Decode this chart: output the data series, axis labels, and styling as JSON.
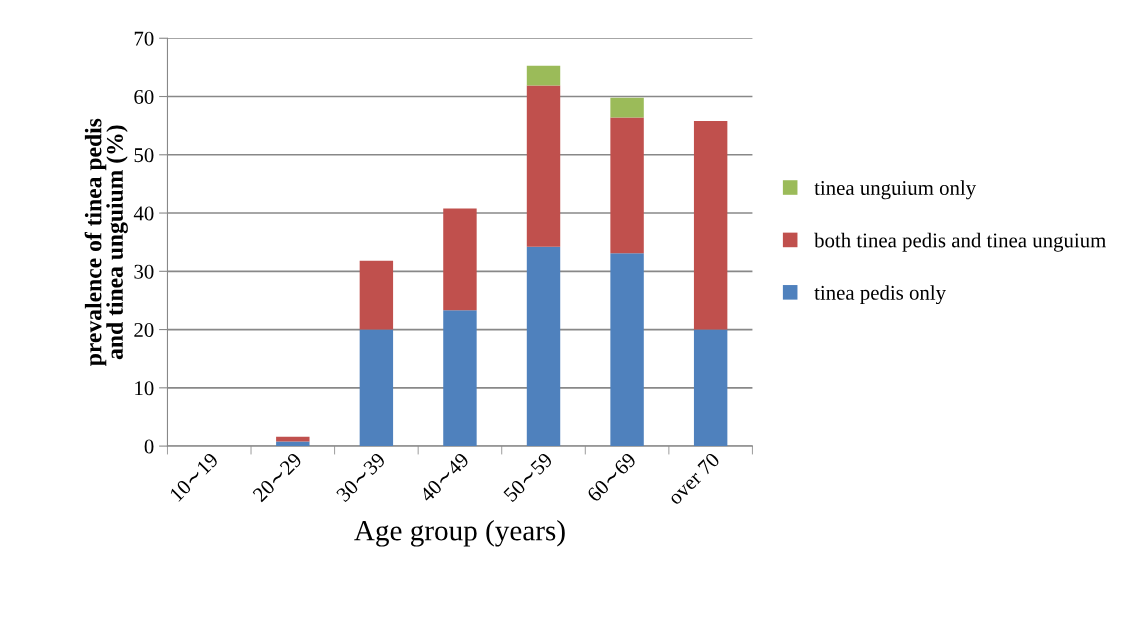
{
  "chart_data": {
    "type": "bar",
    "stacked": true,
    "xlabel": "Age group (years)",
    "ylabel": "prevalence of tinea pedis\nand tinea unguium (%)",
    "categories": [
      "10∼19",
      "20∼29",
      "30∼39",
      "40∼49",
      "50∼59",
      "60∼69",
      "over 70"
    ],
    "series": [
      {
        "name": "tinea pedis only",
        "color": "#4f81bd",
        "values": [
          0,
          0.8,
          20,
          23.3,
          34.2,
          33.1,
          20
        ]
      },
      {
        "name": "both tinea pedis and tinea unguium",
        "color": "#c0504d",
        "values": [
          0,
          0.8,
          11.8,
          17.5,
          27.7,
          23.3,
          35.8
        ]
      },
      {
        "name": "tinea unguium only",
        "color": "#9bbb59",
        "values": [
          0,
          0,
          0,
          0,
          3.4,
          3.4,
          0
        ]
      }
    ],
    "ylim": [
      0,
      70
    ],
    "yticks": [
      0,
      10,
      20,
      30,
      40,
      50,
      60,
      70
    ],
    "grid": "y",
    "legend": "right"
  }
}
